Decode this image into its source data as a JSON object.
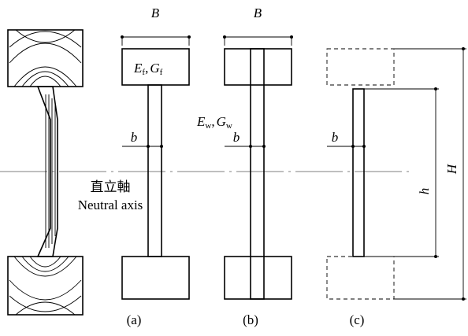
{
  "dimensions": {
    "flange_width_a": "B",
    "flange_width_b": "B",
    "web_width_a": "b",
    "web_width_b": "b",
    "web_width_c": "b",
    "web_height": "h",
    "total_height": "H"
  },
  "flange_props": {
    "E": "E",
    "E_sub": "f",
    "sep": ",",
    "G": "G",
    "G_sub": "f"
  },
  "web_props": {
    "E": "E",
    "E_sub": "w",
    "sep": ",",
    "G": "G",
    "G_sub": "w"
  },
  "neutral_axis": {
    "jp": "直立軸",
    "en": "Neutral axis"
  },
  "captions": [
    "(a)",
    "(b)",
    "(c)"
  ]
}
